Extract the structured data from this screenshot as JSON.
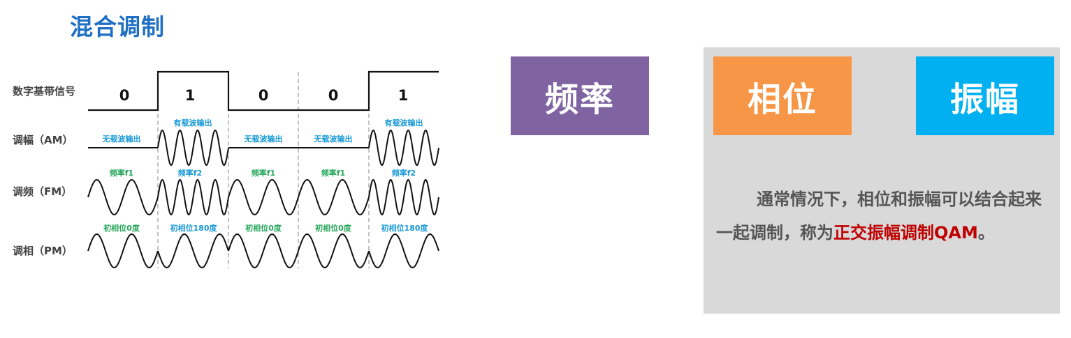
{
  "title": "混合调制",
  "colors": {
    "title": "#1f6fc4",
    "freq_box": "#8064a2",
    "phase_box": "#f79646",
    "amp_box": "#00b0f0",
    "panel_bg": "#d9d9d9",
    "highlight": "#c00000",
    "label_blue": "#1a9ad6",
    "label_green": "#26a65b"
  },
  "diagram": {
    "signal_labels": {
      "digital": "数字基带信号",
      "am": "调幅（AM）",
      "fm": "调频（FM）",
      "pm": "调相（PM）"
    },
    "bits": [
      "0",
      "1",
      "0",
      "0",
      "1"
    ],
    "am_labels": [
      "无载波输出",
      "有载波输出",
      "无载波输出",
      "无载波输出",
      "有载波输出"
    ],
    "fm_labels": [
      "频率f1",
      "频率f2",
      "频率f1",
      "频率f1",
      "频率f2"
    ],
    "pm_labels": [
      "初相位0度",
      "初相位180度",
      "初相位0度",
      "初相位0度",
      "初相位180度"
    ]
  },
  "boxes": {
    "frequency": "频率",
    "phase": "相位",
    "amplitude": "振幅"
  },
  "panel": {
    "text_before": "通常情况下，相位和振幅可以结合起来一起调制，称为",
    "highlight": "正交振幅调制QAM",
    "text_after": "。"
  }
}
